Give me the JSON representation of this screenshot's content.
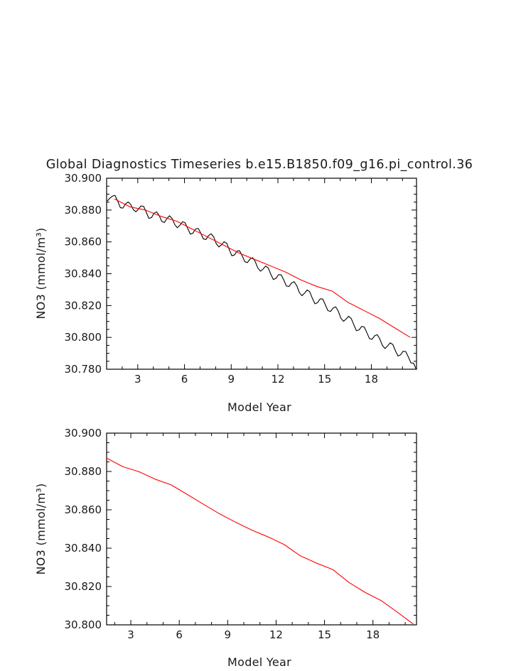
{
  "title": "Global Diagnostics Timeseries b.e15.B1850.f09_g16.pi_control.36",
  "chart_data": [
    {
      "type": "line",
      "xlabel": "Model Year",
      "ylabel": "NO3 (mmol/m³)",
      "xlim": [
        1,
        20.9
      ],
      "ylim": [
        30.78,
        30.9
      ],
      "xticks": [
        3,
        6,
        9,
        12,
        15,
        18
      ],
      "xtick_labels": [
        "3",
        "6",
        "9",
        "12",
        "15",
        "18"
      ],
      "yticks": [
        30.78,
        30.8,
        30.82,
        30.84,
        30.86,
        30.88,
        30.9
      ],
      "ytick_labels": [
        "30.780",
        "30.800",
        "30.820",
        "30.840",
        "30.860",
        "30.880",
        "30.900"
      ],
      "grid": false,
      "series": [
        {
          "color": "#000000",
          "style": "monthly",
          "x": [
            1.04,
            1.21,
            1.38,
            1.54,
            1.71,
            1.88,
            2.04,
            2.21,
            2.38,
            2.54,
            2.71,
            2.88,
            3.04,
            3.21,
            3.38,
            3.54,
            3.71,
            3.88,
            4.04,
            4.21,
            4.38,
            4.54,
            4.71,
            4.88,
            5.04,
            5.21,
            5.38,
            5.54,
            5.71,
            5.88,
            6.04,
            6.21,
            6.38,
            6.54,
            6.71,
            6.88,
            7.04,
            7.21,
            7.38,
            7.54,
            7.71,
            7.88,
            8.04,
            8.21,
            8.38,
            8.54,
            8.71,
            8.88,
            9.04,
            9.21,
            9.38,
            9.54,
            9.71,
            9.88,
            10.04,
            10.21,
            10.38,
            10.54,
            10.71,
            10.88,
            11.04,
            11.21,
            11.38,
            11.54,
            11.71,
            11.88,
            12.04,
            12.21,
            12.38,
            12.54,
            12.71,
            12.88,
            13.04,
            13.21,
            13.38,
            13.54,
            13.71,
            13.88,
            14.04,
            14.21,
            14.38,
            14.54,
            14.71,
            14.88,
            15.04,
            15.21,
            15.38,
            15.54,
            15.71,
            15.88,
            16.04,
            16.21,
            16.38,
            16.54,
            16.71,
            16.88,
            17.04,
            17.21,
            17.38,
            17.54,
            17.71,
            17.88,
            18.04,
            18.21,
            18.38,
            18.54,
            18.71,
            18.88,
            19.04,
            19.21,
            19.38,
            19.54,
            19.71,
            19.88,
            20.04,
            20.21,
            20.38,
            20.54,
            20.71,
            20.88
          ],
          "values": [
            30.8856,
            30.8875,
            30.8888,
            30.8892,
            30.8857,
            30.8815,
            30.8812,
            30.8838,
            30.8851,
            30.8836,
            30.8803,
            30.8789,
            30.8806,
            30.8826,
            30.8823,
            30.8788,
            30.8748,
            30.8752,
            30.878,
            30.8789,
            30.8765,
            30.8729,
            30.8722,
            30.8748,
            30.8764,
            30.8747,
            30.8708,
            30.8689,
            30.8705,
            30.8727,
            30.872,
            30.8684,
            30.8648,
            30.8655,
            30.8681,
            30.8685,
            30.8656,
            30.8619,
            30.8615,
            30.8639,
            30.8651,
            30.8631,
            30.8589,
            30.8568,
            30.8582,
            30.8601,
            30.8592,
            30.8551,
            30.8513,
            30.8518,
            30.8543,
            30.8544,
            30.8512,
            30.8475,
            30.847,
            30.8492,
            30.8501,
            30.8477,
            30.8436,
            30.8416,
            30.8429,
            30.8448,
            30.8436,
            30.8397,
            30.8363,
            30.8372,
            30.8394,
            30.8393,
            30.836,
            30.8323,
            30.832,
            30.8342,
            30.835,
            30.8325,
            30.8281,
            30.8262,
            30.8278,
            30.8298,
            30.8287,
            30.8246,
            30.8211,
            30.8218,
            30.8242,
            30.8241,
            30.8206,
            30.8168,
            30.8163,
            30.8184,
            30.8192,
            30.8164,
            30.8121,
            30.8101,
            30.8115,
            30.8133,
            30.8118,
            30.8078,
            30.8042,
            30.8047,
            30.8069,
            30.8066,
            30.803,
            30.7992,
            30.7988,
            30.801,
            30.8017,
            30.7991,
            30.7949,
            30.793,
            30.7946,
            30.7966,
            30.7955,
            30.7917,
            30.7883,
            30.7891,
            30.7913,
            30.7911,
            30.7876,
            30.784,
            30.7838,
            30.78
          ]
        },
        {
          "color": "#ff0000",
          "style": "annual",
          "x": [
            1.5,
            2.5,
            3.5,
            4.5,
            5.5,
            6.5,
            7.5,
            8.5,
            9.5,
            10.5,
            11.5,
            12.5,
            13.5,
            14.5,
            15.5,
            16.5,
            17.5,
            18.5,
            19.5,
            20.5
          ],
          "values": [
            30.887,
            30.882,
            30.88,
            30.876,
            30.873,
            30.868,
            30.863,
            30.858,
            30.853,
            30.849,
            30.845,
            30.841,
            30.836,
            30.832,
            30.829,
            30.822,
            30.817,
            30.812,
            30.806,
            30.8
          ]
        }
      ]
    },
    {
      "type": "line",
      "xlabel": "Model Year",
      "ylabel": "NO3 (mmol/m³)",
      "xlim": [
        1.5,
        20.7
      ],
      "ylim": [
        30.8,
        30.9
      ],
      "xticks": [
        3,
        6,
        9,
        12,
        15,
        18
      ],
      "xtick_labels": [
        "3",
        "6",
        "9",
        "12",
        "15",
        "18"
      ],
      "yticks": [
        30.8,
        30.82,
        30.84,
        30.86,
        30.88,
        30.9
      ],
      "ytick_labels": [
        "30.800",
        "30.820",
        "30.840",
        "30.860",
        "30.880",
        "30.900"
      ],
      "grid": false,
      "series": [
        {
          "color": "#ff0000",
          "style": "annual",
          "x": [
            1.5,
            2.5,
            3.5,
            4.5,
            5.5,
            6.5,
            7.5,
            8.5,
            9.5,
            10.5,
            11.5,
            12.5,
            13.5,
            14.5,
            15.5,
            16.5,
            17.5,
            18.5,
            19.5,
            20.5
          ],
          "values": [
            30.887,
            30.8825,
            30.8799,
            30.876,
            30.873,
            30.868,
            30.8629,
            30.8579,
            30.8535,
            30.8494,
            30.8459,
            30.8419,
            30.836,
            30.8322,
            30.8289,
            30.8222,
            30.817,
            30.8127,
            30.8067,
            30.8004
          ]
        }
      ]
    }
  ]
}
